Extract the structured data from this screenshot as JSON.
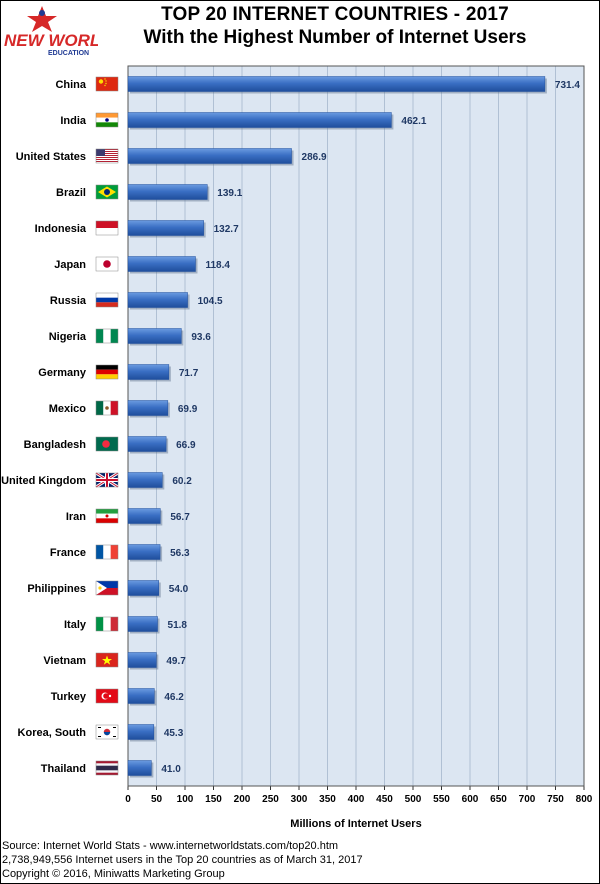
{
  "logo": {
    "line1": "NEW WORLD",
    "line2": "EDUCATION"
  },
  "chart_data": {
    "type": "bar",
    "orientation": "horizontal",
    "title": "TOP 20 INTERNET COUNTRIES  - 2017",
    "subtitle": "With the Highest Number of Internet Users",
    "xlabel": "Millions of Internet Users",
    "xlim": [
      0,
      800
    ],
    "xticks": [
      0,
      50,
      100,
      150,
      200,
      250,
      300,
      350,
      400,
      450,
      500,
      550,
      600,
      650,
      700,
      750,
      800
    ],
    "grid": true,
    "categories": [
      "China",
      "India",
      "United States",
      "Brazil",
      "Indonesia",
      "Japan",
      "Russia",
      "Nigeria",
      "Germany",
      "Mexico",
      "Bangladesh",
      "United Kingdom",
      "Iran",
      "France",
      "Philippines",
      "Italy",
      "Vietnam",
      "Turkey",
      "Korea, South",
      "Thailand"
    ],
    "values": [
      731.4,
      462.1,
      286.9,
      139.1,
      132.7,
      118.4,
      104.5,
      93.6,
      71.7,
      69.9,
      66.9,
      60.2,
      56.7,
      56.3,
      54.0,
      51.8,
      49.7,
      46.2,
      45.3,
      41.0
    ],
    "value_labels": [
      "731.4",
      "462.1",
      "286.9",
      "139.1",
      "132.7",
      "118.4",
      "104.5",
      "93.6",
      "71.7",
      "69.9",
      "66.9",
      "60.2",
      "56.7",
      "56.3",
      "54.0",
      "51.8",
      "49.7",
      "46.2",
      "45.3",
      "41.0"
    ],
    "flag_icons": [
      "china-flag-icon",
      "india-flag-icon",
      "united-states-flag-icon",
      "brazil-flag-icon",
      "indonesia-flag-icon",
      "japan-flag-icon",
      "russia-flag-icon",
      "nigeria-flag-icon",
      "germany-flag-icon",
      "mexico-flag-icon",
      "bangladesh-flag-icon",
      "united-kingdom-flag-icon",
      "iran-flag-icon",
      "france-flag-icon",
      "philippines-flag-icon",
      "italy-flag-icon",
      "vietnam-flag-icon",
      "turkey-flag-icon",
      "korea-south-flag-icon",
      "thailand-flag-icon"
    ],
    "colors": {
      "plot_background": "#dce6f2",
      "bar": "#3a6fc4",
      "bar_dark": "#1f4e9c",
      "value_label": "#1f3864",
      "grid": "#b0c0d4"
    }
  },
  "footer": {
    "source": "Source: Internet World Stats  -  www.internetworldstats.com/top20.htm",
    "total": "2,738,949,556 Internet users in the Top 20 countries as of March 31, 2017",
    "copyright": "Copyright © 2016, Miniwatts Marketing Group"
  }
}
